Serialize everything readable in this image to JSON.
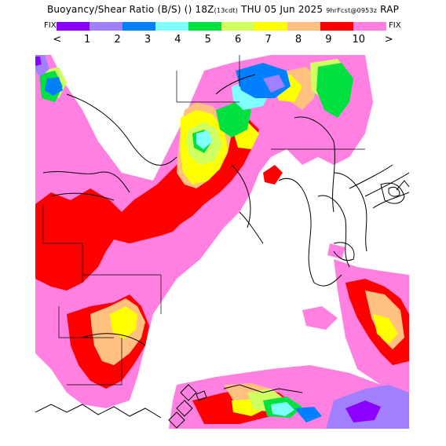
{
  "header": {
    "title_main": "Buoyancy/Shear Ratio (B/S) () 18Z",
    "title_run": "(13cdt)",
    "title_date": "THU 05 Jun 2025",
    "title_fcst": "9hrFcst@0953z",
    "title_model": "RAP"
  },
  "legend": {
    "fix_left": "FIX",
    "fix_right": "FIX",
    "lt": "<",
    "gt": ">",
    "labels": [
      "1",
      "2",
      "3",
      "4",
      "5",
      "6",
      "7",
      "8",
      "9",
      "10"
    ],
    "colors": [
      "#8c00ff",
      "#a080ff",
      "#0080ff",
      "#80ffff",
      "#00e040",
      "#d0ff60",
      "#ffff00",
      "#ffc080",
      "#ff0000",
      "#ff80e0"
    ]
  },
  "map": {
    "colors": {
      "purple": "#8c00ff",
      "lavender": "#a080ff",
      "blue": "#0080ff",
      "cyan": "#80ffff",
      "green": "#00e040",
      "lime": "#d0ff60",
      "yellow": "#ffff00",
      "peach": "#ffc080",
      "red": "#ff0000",
      "pink": "#ff80e0"
    }
  }
}
